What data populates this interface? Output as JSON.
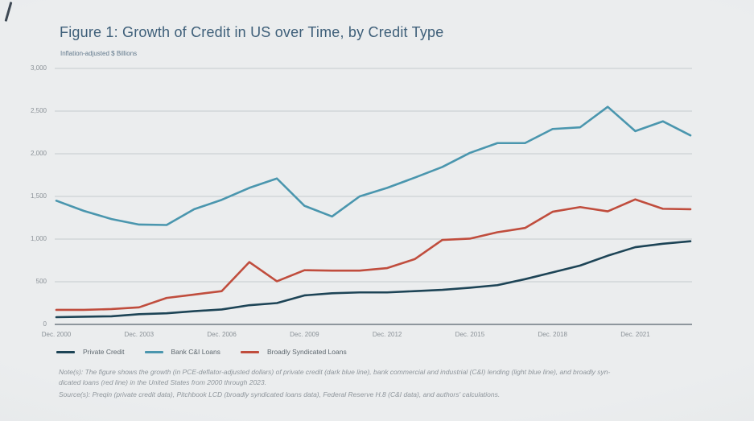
{
  "page": {
    "title": "Figure 1: Growth of Credit in US over Time, by Credit Type",
    "subtitle": "Inflation-adjusted $ Billions",
    "note_line1": "Note(s): The figure shows the growth (in PCE-deflator-adjusted dollars) of private credit (dark blue line), bank commercial and industrial (C&I) lending (light blue line), and broadly syn-",
    "note_line2": "dicated loans (red line) in the United States from 2000 through 2023.",
    "source_line": "Source(s): Preqin (private credit data), Pitchbook LCD (broadly syndicated loans data), Federal Reserve H.8 (C&I data), and authors' calculations."
  },
  "colors": {
    "background": "#e9ebec",
    "gridline": "#c6cacd",
    "axis_line": "#6f7a82",
    "tick_label": "#8a9197",
    "title_text": "#3e5f79",
    "note_text": "#8f969c"
  },
  "chart_data": {
    "type": "line",
    "title": "Figure 1: Growth of Credit in US over Time, by Credit Type",
    "ylabel": "Inflation-adjusted $ Billions",
    "xlabel": "",
    "grid": "horizontal",
    "legend_position": "bottom",
    "xlim": [
      2000,
      2023
    ],
    "ylim": [
      0,
      3000
    ],
    "x": [
      2000,
      2001,
      2002,
      2003,
      2004,
      2005,
      2006,
      2007,
      2008,
      2009,
      2010,
      2011,
      2012,
      2013,
      2014,
      2015,
      2016,
      2017,
      2018,
      2019,
      2020,
      2021,
      2022,
      2023
    ],
    "x_tick_years": [
      2000,
      2003,
      2006,
      2009,
      2012,
      2015,
      2018,
      2021
    ],
    "x_tick_labels": [
      "Dec. 2000",
      "Dec. 2003",
      "Dec. 2006",
      "Dec. 2009",
      "Dec. 2012",
      "Dec. 2015",
      "Dec. 2018",
      "Dec. 2021"
    ],
    "y_ticks": [
      0,
      500,
      1000,
      1500,
      2000,
      2500,
      3000
    ],
    "y_tick_labels": [
      "0",
      "500",
      "1,000",
      "1,500",
      "2,000",
      "2,500",
      "3,000"
    ],
    "series": [
      {
        "name": "Private Credit",
        "color": "#1d4456",
        "values": [
          85,
          90,
          95,
          120,
          130,
          155,
          175,
          225,
          250,
          340,
          365,
          375,
          375,
          390,
          405,
          430,
          460,
          530,
          610,
          690,
          805,
          905,
          945,
          975
        ]
      },
      {
        "name": "Bank C&I Loans",
        "color": "#4a96ae",
        "values": [
          1450,
          1330,
          1235,
          1170,
          1165,
          1350,
          1460,
          1600,
          1710,
          1390,
          1265,
          1500,
          1600,
          1720,
          1845,
          2010,
          2125,
          2125,
          2290,
          2310,
          2550,
          2265,
          2380,
          2215
        ]
      },
      {
        "name": "Broadly Syndicated Loans",
        "color": "#c04d3d",
        "values": [
          170,
          170,
          180,
          200,
          310,
          350,
          390,
          730,
          505,
          635,
          630,
          630,
          660,
          765,
          990,
          1005,
          1080,
          1130,
          1320,
          1375,
          1325,
          1465,
          1355,
          1350
        ]
      }
    ]
  }
}
